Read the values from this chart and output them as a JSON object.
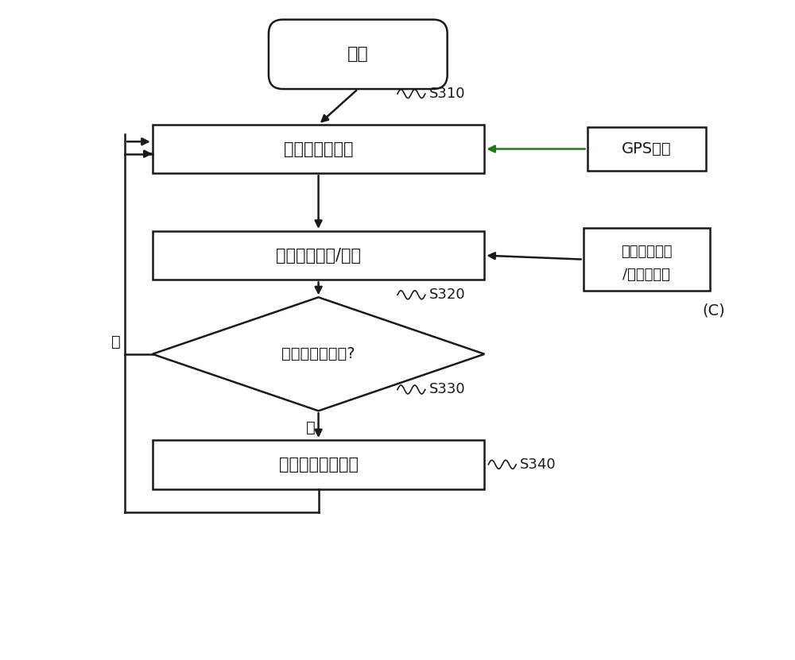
{
  "bg_color": "#ffffff",
  "text_color": "#1a1a1a",
  "box_edge_color": "#1a1a1a",
  "arrow_color": "#1a1a1a",
  "gps_arrow_color": "#1a7a1a",
  "start_label": "开始",
  "box1_label": "估计车辆的位置",
  "box2_label": "估计地图匹配/路径",
  "diamond_label": "穿过减速带路径?",
  "box3_label": "传输悬架控制指令",
  "gps_label": "GPS数据",
  "map_line1": "地图数据信息",
  "map_line2": "/减速带位置",
  "s310_label": "S310",
  "s320_label": "S320",
  "s330_label": "S330",
  "s340_label": "S340",
  "c_label": "(C)",
  "yes_label": "是",
  "no_label": "否",
  "line_width": 1.8,
  "font_size": 15
}
